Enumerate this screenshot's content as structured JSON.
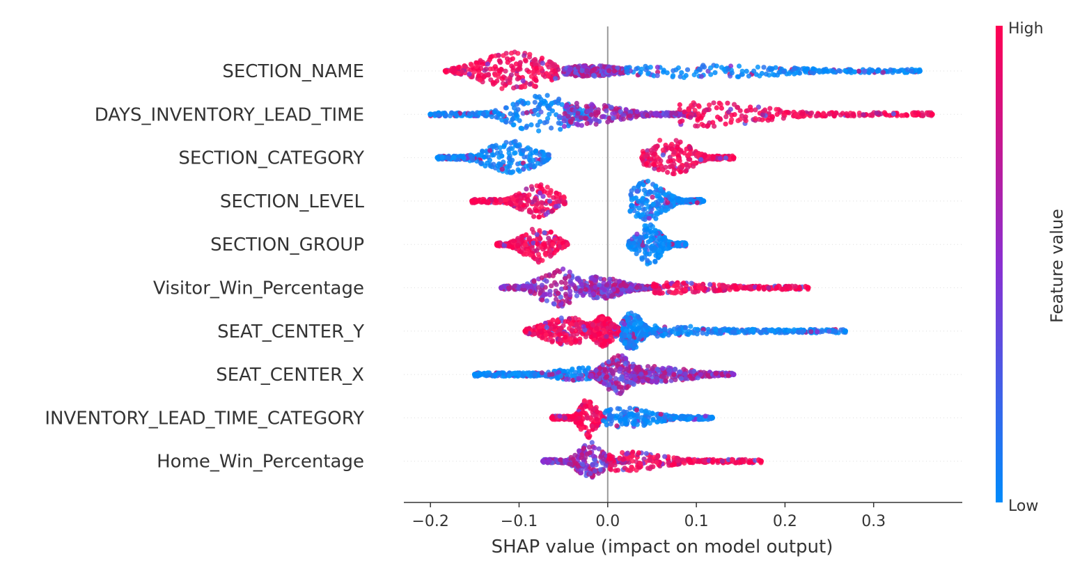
{
  "chart_data": {
    "type": "scatter",
    "xlabel": "SHAP value (impact on model output)",
    "xlim": [
      -0.23,
      0.4
    ],
    "xticks": [
      {
        "value": -0.2,
        "label": "−0.2"
      },
      {
        "value": -0.1,
        "label": "−0.1"
      },
      {
        "value": 0.0,
        "label": "0.0"
      },
      {
        "value": 0.1,
        "label": "0.1"
      },
      {
        "value": 0.2,
        "label": "0.2"
      },
      {
        "value": 0.3,
        "label": "0.3"
      }
    ],
    "colorbar": {
      "title": "Feature value",
      "high_label": "High",
      "low_label": "Low",
      "high_color": "#ff0052",
      "low_color": "#008bfb"
    },
    "features": [
      {
        "name": "SECTION_NAME",
        "min": -0.183,
        "max": 0.352,
        "clusters": [
          {
            "from": -0.183,
            "to": -0.055,
            "peak": -0.105,
            "width": 0.035,
            "height": 28,
            "color": "high"
          },
          {
            "from": -0.05,
            "to": 0.02,
            "peak": -0.02,
            "width": 0.03,
            "height": 8,
            "color": "mid"
          },
          {
            "from": 0.02,
            "to": 0.352,
            "peak": 0.11,
            "width": 0.08,
            "height": 10,
            "color": "low"
          }
        ]
      },
      {
        "name": "DAYS_INVENTORY_LEAD_TIME",
        "min": -0.2,
        "max": 0.366,
        "clusters": [
          {
            "from": -0.2,
            "to": -0.02,
            "peak": -0.075,
            "width": 0.03,
            "height": 28,
            "color": "low"
          },
          {
            "from": -0.05,
            "to": 0.1,
            "peak": -0.03,
            "width": 0.04,
            "height": 16,
            "color": "mid"
          },
          {
            "from": 0.08,
            "to": 0.366,
            "peak": 0.11,
            "width": 0.06,
            "height": 18,
            "color": "high"
          }
        ]
      },
      {
        "name": "SECTION_CATEGORY",
        "min": -0.192,
        "max": 0.142,
        "clusters": [
          {
            "from": -0.192,
            "to": -0.065,
            "peak": -0.11,
            "width": 0.025,
            "height": 24,
            "color": "low"
          },
          {
            "from": 0.038,
            "to": 0.142,
            "peak": 0.07,
            "width": 0.02,
            "height": 30,
            "color": "high"
          }
        ]
      },
      {
        "name": "SECTION_LEVEL",
        "min": -0.153,
        "max": 0.108,
        "clusters": [
          {
            "from": -0.153,
            "to": -0.048,
            "peak": -0.078,
            "width": 0.018,
            "height": 24,
            "color": "high"
          },
          {
            "from": 0.025,
            "to": 0.108,
            "peak": 0.045,
            "width": 0.017,
            "height": 30,
            "color": "low"
          }
        ]
      },
      {
        "name": "SECTION_GROUP",
        "min": -0.125,
        "max": 0.088,
        "clusters": [
          {
            "from": -0.125,
            "to": -0.045,
            "peak": -0.078,
            "width": 0.016,
            "height": 26,
            "color": "high"
          },
          {
            "from": 0.023,
            "to": 0.088,
            "peak": 0.047,
            "width": 0.012,
            "height": 30,
            "color": "low"
          }
        ]
      },
      {
        "name": "Visitor_Win_Percentage",
        "min": -0.12,
        "max": 0.226,
        "clusters": [
          {
            "from": -0.12,
            "to": 0.0,
            "peak": -0.055,
            "width": 0.02,
            "height": 28,
            "color": "mid"
          },
          {
            "from": -0.02,
            "to": 0.06,
            "peak": -0.01,
            "width": 0.025,
            "height": 16,
            "color": "mid"
          },
          {
            "from": 0.05,
            "to": 0.226,
            "peak": 0.06,
            "width": 0.06,
            "height": 8,
            "color": "high"
          }
        ]
      },
      {
        "name": "SEAT_CENTER_Y",
        "min": -0.093,
        "max": 0.268,
        "clusters": [
          {
            "from": -0.093,
            "to": -0.01,
            "peak": -0.045,
            "width": 0.025,
            "height": 20,
            "color": "high"
          },
          {
            "from": -0.02,
            "to": 0.015,
            "peak": -0.005,
            "width": 0.01,
            "height": 22,
            "color": "high"
          },
          {
            "from": 0.015,
            "to": 0.055,
            "peak": 0.027,
            "width": 0.01,
            "height": 28,
            "color": "low"
          },
          {
            "from": 0.05,
            "to": 0.268,
            "peak": 0.06,
            "width": 0.06,
            "height": 8,
            "color": "low"
          }
        ]
      },
      {
        "name": "SEAT_CENTER_X",
        "min": -0.15,
        "max": 0.142,
        "clusters": [
          {
            "from": -0.15,
            "to": -0.02,
            "peak": -0.03,
            "width": 0.025,
            "height": 10,
            "color": "low"
          },
          {
            "from": -0.02,
            "to": 0.04,
            "peak": 0.012,
            "width": 0.015,
            "height": 28,
            "color": "mid"
          },
          {
            "from": 0.03,
            "to": 0.142,
            "peak": 0.05,
            "width": 0.04,
            "height": 12,
            "color": "mid"
          }
        ]
      },
      {
        "name": "INVENTORY_LEAD_TIME_CATEGORY",
        "min": -0.063,
        "max": 0.118,
        "clusters": [
          {
            "from": -0.063,
            "to": -0.005,
            "peak": -0.022,
            "width": 0.008,
            "height": 30,
            "color": "high"
          },
          {
            "from": -0.005,
            "to": 0.118,
            "peak": 0.02,
            "width": 0.03,
            "height": 14,
            "color": "low"
          }
        ]
      },
      {
        "name": "Home_Win_Percentage",
        "min": -0.073,
        "max": 0.173,
        "clusters": [
          {
            "from": -0.073,
            "to": 0.025,
            "peak": -0.02,
            "width": 0.012,
            "height": 28,
            "color": "mid"
          },
          {
            "from": 0.0,
            "to": 0.173,
            "peak": 0.02,
            "width": 0.04,
            "height": 14,
            "color": "high"
          }
        ]
      }
    ]
  }
}
